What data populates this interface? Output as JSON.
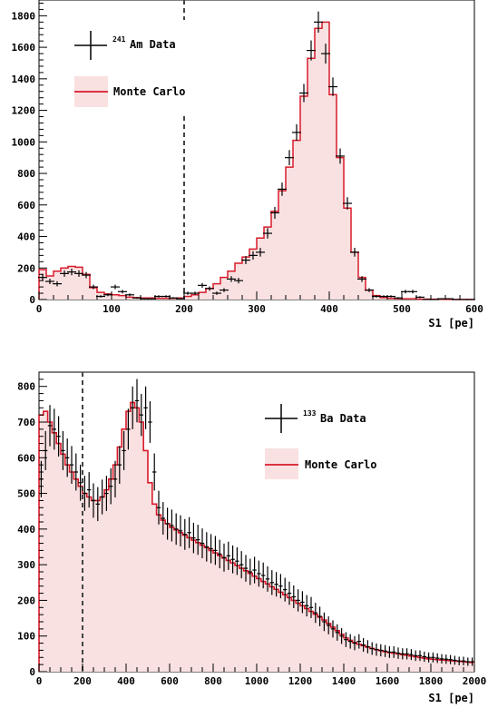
{
  "chart_data": [
    {
      "type": "histogram",
      "xlabel": "S1 [pe]",
      "ylabel": "",
      "xlim": [
        0,
        600
      ],
      "ylim": [
        0,
        1900
      ],
      "xticks": [
        0,
        100,
        200,
        300,
        400,
        500,
        600
      ],
      "yticks": [
        0,
        200,
        400,
        600,
        800,
        1000,
        1200,
        1400,
        1600,
        1800
      ],
      "cut_line_x": 200,
      "legend_placement": "top-left",
      "series": [
        {
          "name": "Data",
          "name_sup": "241",
          "name_main": "Am Data",
          "style": "points-with-error-bars",
          "color": "#000000",
          "bin_width": 10,
          "x": [
            5,
            15,
            25,
            35,
            45,
            55,
            65,
            75,
            85,
            95,
            105,
            115,
            125,
            135,
            145,
            155,
            165,
            175,
            185,
            195,
            205,
            215,
            225,
            235,
            245,
            255,
            265,
            275,
            285,
            295,
            305,
            315,
            325,
            335,
            345,
            355,
            365,
            375,
            385,
            395,
            405,
            415,
            425,
            435,
            445,
            455,
            465,
            475,
            485,
            495,
            505,
            515,
            525,
            535,
            545,
            555,
            565,
            575,
            585,
            595
          ],
          "y": [
            140,
            115,
            100,
            165,
            175,
            165,
            155,
            80,
            20,
            30,
            80,
            50,
            30,
            10,
            5,
            5,
            20,
            20,
            10,
            5,
            40,
            40,
            90,
            70,
            40,
            60,
            130,
            120,
            250,
            280,
            300,
            420,
            550,
            700,
            900,
            1060,
            1310,
            1580,
            1760,
            1560,
            1350,
            910,
            610,
            300,
            130,
            60,
            20,
            20,
            20,
            10,
            50,
            50,
            15,
            0,
            0,
            5,
            5,
            0,
            0,
            0
          ]
        },
        {
          "name": "Monte Carlo",
          "style": "step-filled",
          "color": "#d81b2b",
          "fill": "#f9e1e1",
          "bin_width": 10,
          "x": [
            5,
            15,
            25,
            35,
            45,
            55,
            65,
            75,
            85,
            95,
            105,
            115,
            125,
            135,
            145,
            155,
            165,
            175,
            185,
            195,
            205,
            215,
            225,
            235,
            245,
            255,
            265,
            275,
            285,
            295,
            305,
            315,
            325,
            335,
            345,
            355,
            365,
            375,
            385,
            395,
            405,
            415,
            425,
            435,
            445,
            455,
            465,
            475,
            485,
            495,
            505,
            515,
            525,
            535,
            545,
            555,
            565,
            575,
            585,
            595
          ],
          "y": [
            190,
            150,
            180,
            200,
            210,
            205,
            160,
            75,
            45,
            35,
            30,
            25,
            15,
            12,
            10,
            10,
            8,
            8,
            8,
            10,
            20,
            30,
            45,
            70,
            100,
            140,
            180,
            230,
            270,
            320,
            390,
            460,
            560,
            690,
            840,
            1010,
            1290,
            1530,
            1720,
            1760,
            1300,
            900,
            580,
            300,
            140,
            60,
            25,
            12,
            8,
            6,
            5,
            5,
            3,
            3,
            2,
            2,
            1,
            1,
            1,
            1
          ]
        }
      ]
    },
    {
      "type": "histogram",
      "xlabel": "S1 [pe]",
      "ylabel": "",
      "xlim": [
        0,
        2000
      ],
      "ylim": [
        0,
        840
      ],
      "xticks": [
        0,
        200,
        400,
        600,
        800,
        1000,
        1200,
        1400,
        1600,
        1800,
        2000
      ],
      "yticks": [
        0,
        100,
        200,
        300,
        400,
        500,
        600,
        700,
        800
      ],
      "cut_line_x": 200,
      "legend_placement": "top-right",
      "series": [
        {
          "name": "Data",
          "name_sup": "133",
          "name_main": "Ba Data",
          "style": "points-with-error-bars",
          "color": "#000000",
          "x": [
            10,
            30,
            50,
            70,
            90,
            110,
            130,
            150,
            170,
            190,
            210,
            230,
            250,
            270,
            290,
            310,
            330,
            350,
            370,
            390,
            410,
            430,
            450,
            470,
            490,
            510,
            530,
            550,
            570,
            590,
            610,
            630,
            650,
            670,
            690,
            710,
            730,
            750,
            770,
            790,
            810,
            830,
            850,
            870,
            890,
            910,
            930,
            950,
            970,
            990,
            1010,
            1030,
            1050,
            1070,
            1090,
            1110,
            1130,
            1150,
            1170,
            1190,
            1210,
            1230,
            1250,
            1270,
            1290,
            1310,
            1330,
            1350,
            1370,
            1390,
            1410,
            1430,
            1450,
            1470,
            1490,
            1510,
            1530,
            1550,
            1570,
            1590,
            1610,
            1630,
            1650,
            1670,
            1690,
            1710,
            1730,
            1750,
            1770,
            1790,
            1810,
            1830,
            1850,
            1870,
            1890,
            1910,
            1930,
            1950,
            1970,
            1990
          ],
          "y": [
            540,
            620,
            690,
            680,
            660,
            620,
            600,
            580,
            560,
            530,
            500,
            510,
            480,
            470,
            490,
            500,
            520,
            540,
            580,
            620,
            680,
            740,
            760,
            720,
            740,
            700,
            560,
            460,
            430,
            415,
            410,
            400,
            395,
            385,
            390,
            375,
            370,
            360,
            350,
            345,
            340,
            330,
            320,
            325,
            315,
            310,
            300,
            290,
            280,
            285,
            275,
            270,
            260,
            250,
            245,
            240,
            230,
            220,
            210,
            200,
            195,
            185,
            180,
            165,
            155,
            140,
            130,
            120,
            110,
            100,
            90,
            85,
            80,
            85,
            75,
            70,
            65,
            62,
            60,
            58,
            55,
            55,
            52,
            50,
            50,
            48,
            45,
            45,
            42,
            40,
            40,
            38,
            36,
            35,
            34,
            32,
            30,
            30,
            28,
            28
          ]
        },
        {
          "name": "Monte Carlo",
          "style": "step-filled",
          "color": "#d81b2b",
          "fill": "#f9e1e1",
          "x": [
            10,
            30,
            50,
            70,
            90,
            110,
            130,
            150,
            170,
            190,
            210,
            230,
            250,
            270,
            290,
            310,
            330,
            350,
            370,
            390,
            410,
            430,
            450,
            470,
            490,
            510,
            530,
            550,
            570,
            590,
            610,
            630,
            650,
            670,
            690,
            710,
            730,
            750,
            770,
            790,
            810,
            830,
            850,
            870,
            890,
            910,
            930,
            950,
            970,
            990,
            1010,
            1030,
            1050,
            1070,
            1090,
            1110,
            1130,
            1150,
            1170,
            1190,
            1210,
            1230,
            1250,
            1270,
            1290,
            1310,
            1330,
            1350,
            1370,
            1390,
            1410,
            1430,
            1450,
            1470,
            1490,
            1510,
            1530,
            1550,
            1570,
            1590,
            1610,
            1630,
            1650,
            1670,
            1690,
            1710,
            1730,
            1750,
            1770,
            1790,
            1810,
            1830,
            1850,
            1870,
            1890,
            1910,
            1930,
            1950,
            1970,
            1990
          ],
          "y": [
            720,
            730,
            700,
            670,
            640,
            610,
            580,
            560,
            540,
            520,
            500,
            490,
            480,
            480,
            490,
            510,
            540,
            580,
            630,
            680,
            730,
            755,
            740,
            700,
            620,
            530,
            470,
            440,
            425,
            415,
            405,
            398,
            390,
            383,
            376,
            369,
            362,
            355,
            348,
            340,
            333,
            326,
            319,
            312,
            305,
            298,
            290,
            283,
            276,
            268,
            261,
            253,
            246,
            238,
            231,
            223,
            216,
            208,
            200,
            192,
            185,
            177,
            169,
            161,
            153,
            145,
            135,
            125,
            115,
            105,
            95,
            88,
            82,
            77,
            73,
            69,
            65,
            62,
            59,
            56,
            54,
            52,
            50,
            48,
            46,
            44,
            42,
            40,
            38,
            36,
            35,
            34,
            33,
            32,
            31,
            30,
            29,
            28,
            27,
            26
          ]
        }
      ]
    }
  ]
}
